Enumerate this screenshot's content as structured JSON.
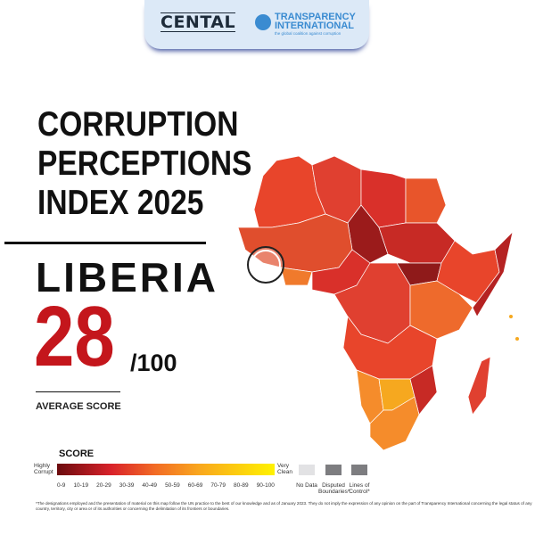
{
  "header": {
    "partner_logo": "CENTAL",
    "org_name_line1": "TRANSPARENCY",
    "org_name_line2": "INTERNATIONAL",
    "org_tagline": "the global coalition against corruption"
  },
  "title_lines": [
    "CORRUPTION",
    "PERCEPTIONS",
    "INDEX 2025"
  ],
  "country": "LIBERIA",
  "score": "28",
  "score_max": "/100",
  "score_label": "AVERAGE SCORE",
  "legend": {
    "title": "SCORE",
    "low_label": "Highly Corrupt",
    "high_label": "Very Clean",
    "ranges": [
      "0-9",
      "10-19",
      "20-29",
      "30-39",
      "40-49",
      "50-59",
      "60-69",
      "70-79",
      "80-89",
      "90-100"
    ],
    "no_data": "No Data",
    "disputed": "Disputed Boundaries*",
    "lines_of_control": "Lines of Control*"
  },
  "footnote": "*The designations employed and the presentation of material on this map follow the UN practice to the best of our knowledge and as of January 2023. They do not imply the expression of any opinion on the part of Transparency International concerning the legal status of any country, territory, city or area or of its authorities or concerning the delimitation of its frontiers or boundaries.",
  "colors": {
    "accent_red": "#c4161c",
    "banner_bg": "#dce9f7",
    "ti_blue": "#3a8bd1"
  }
}
